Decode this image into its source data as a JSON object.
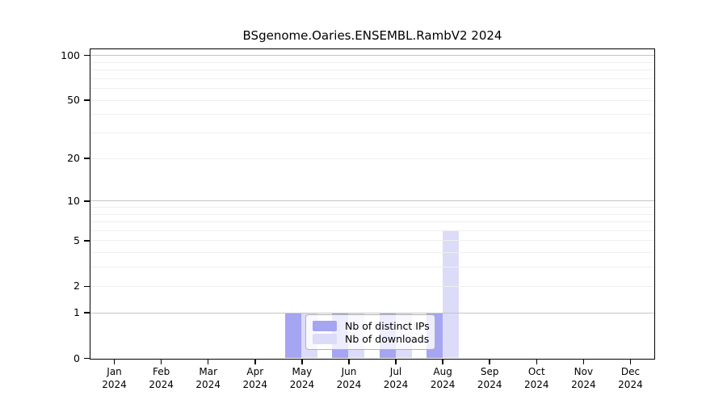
{
  "figure": {
    "background": "#ffffff"
  },
  "chart_data": {
    "type": "bar",
    "title": "BSgenome.Oaries.ENSEMBL.RambV2 2024",
    "year_label": "2024",
    "categories": [
      "Jan",
      "Feb",
      "Mar",
      "Apr",
      "May",
      "Jun",
      "Jul",
      "Aug",
      "Sep",
      "Oct",
      "Nov",
      "Dec"
    ],
    "series": [
      {
        "name": "Nb of distinct IPs",
        "key": "distinct-ips",
        "color": "#a5a5f2",
        "values": [
          0,
          0,
          0,
          0,
          1,
          1,
          1,
          1,
          0,
          0,
          0,
          0
        ]
      },
      {
        "name": "Nb of downloads",
        "key": "downloads",
        "color": "#dcdcf8",
        "values": [
          0,
          0,
          0,
          0,
          1,
          1,
          1,
          6,
          0,
          0,
          0,
          0
        ]
      }
    ],
    "yscale": "log10(1+x)",
    "ylim": [
      0,
      110
    ],
    "yticks": [
      0,
      1,
      2,
      5,
      10,
      20,
      50,
      100
    ],
    "gridlines_major": [
      1,
      10,
      100
    ],
    "gridlines_minor": [
      2,
      3,
      4,
      5,
      6,
      7,
      8,
      9,
      20,
      30,
      40,
      50,
      60,
      70,
      80,
      90
    ],
    "grid_major_color": "#c5c5c5",
    "grid_minor_color": "#efefef",
    "axis_color": "#000000",
    "legend_position": "bottom-center",
    "grid": "on"
  }
}
